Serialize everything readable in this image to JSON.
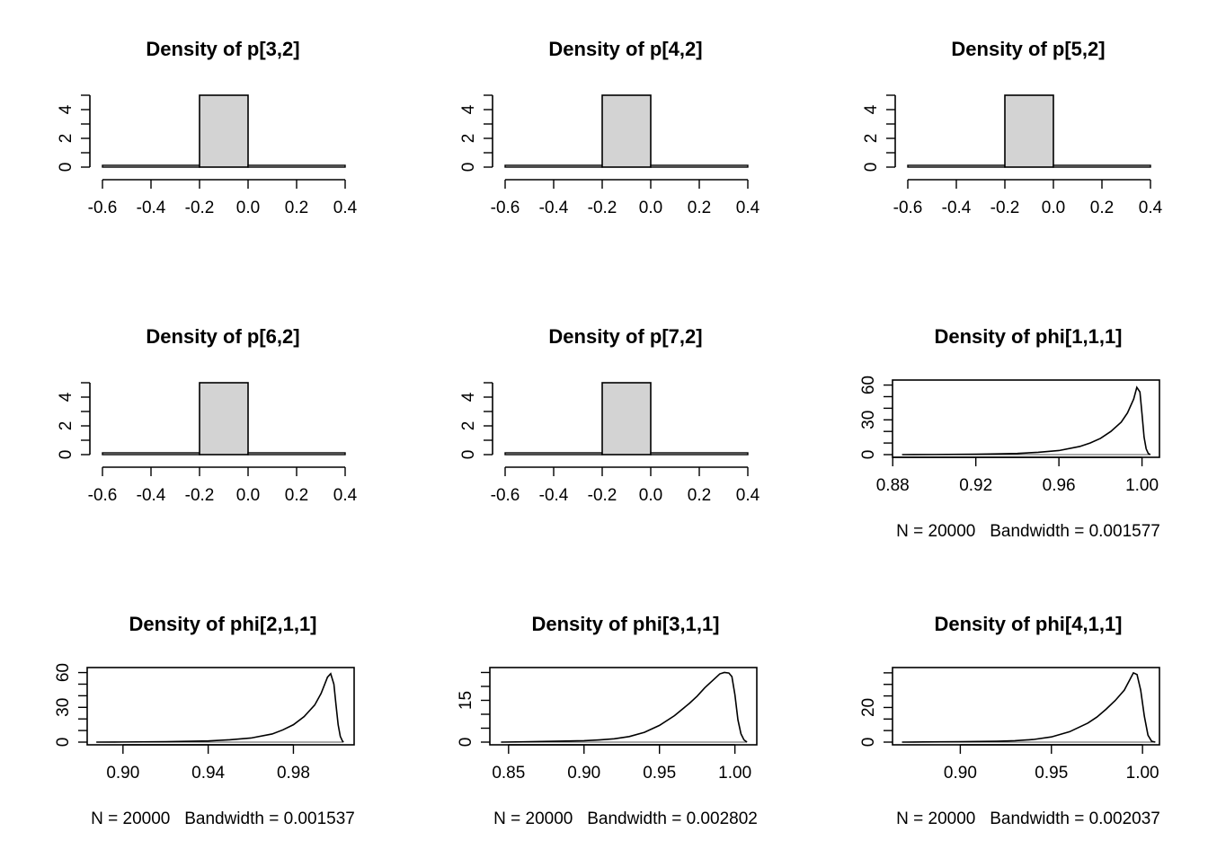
{
  "chart_data": [
    {
      "type": "histogram",
      "title": "Density of p[3,2]",
      "bins": [
        {
          "x0": -0.6,
          "x1": -0.2,
          "y": 0
        },
        {
          "x0": -0.2,
          "x1": 0.0,
          "y": 5
        },
        {
          "x0": 0.0,
          "x1": 0.4,
          "y": 0
        }
      ],
      "xticks": [
        -0.6,
        -0.4,
        -0.2,
        0.0,
        0.2,
        0.4
      ],
      "xticklabels": [
        "-0.6",
        "-0.4",
        "-0.2",
        "0.0",
        "0.2",
        "0.4"
      ],
      "yticks": [
        0,
        2,
        4
      ],
      "ylim": [
        0,
        5
      ],
      "frame": false,
      "subtitle": ""
    },
    {
      "type": "histogram",
      "title": "Density of p[4,2]",
      "bins": [
        {
          "x0": -0.6,
          "x1": -0.2,
          "y": 0
        },
        {
          "x0": -0.2,
          "x1": 0.0,
          "y": 5
        },
        {
          "x0": 0.0,
          "x1": 0.4,
          "y": 0
        }
      ],
      "xticks": [
        -0.6,
        -0.4,
        -0.2,
        0.0,
        0.2,
        0.4
      ],
      "xticklabels": [
        "-0.6",
        "-0.4",
        "-0.2",
        "0.0",
        "0.2",
        "0.4"
      ],
      "yticks": [
        0,
        2,
        4
      ],
      "ylim": [
        0,
        5
      ],
      "frame": false,
      "subtitle": ""
    },
    {
      "type": "histogram",
      "title": "Density of p[5,2]",
      "bins": [
        {
          "x0": -0.6,
          "x1": -0.2,
          "y": 0
        },
        {
          "x0": -0.2,
          "x1": 0.0,
          "y": 5
        },
        {
          "x0": 0.0,
          "x1": 0.4,
          "y": 0
        }
      ],
      "xticks": [
        -0.6,
        -0.4,
        -0.2,
        0.0,
        0.2,
        0.4
      ],
      "xticklabels": [
        "-0.6",
        "-0.4",
        "-0.2",
        "0.0",
        "0.2",
        "0.4"
      ],
      "yticks": [
        0,
        2,
        4
      ],
      "ylim": [
        0,
        5
      ],
      "frame": false,
      "subtitle": ""
    },
    {
      "type": "histogram",
      "title": "Density of p[6,2]",
      "bins": [
        {
          "x0": -0.6,
          "x1": -0.2,
          "y": 0
        },
        {
          "x0": -0.2,
          "x1": 0.0,
          "y": 5
        },
        {
          "x0": 0.0,
          "x1": 0.4,
          "y": 0
        }
      ],
      "xticks": [
        -0.6,
        -0.4,
        -0.2,
        0.0,
        0.2,
        0.4
      ],
      "xticklabels": [
        "-0.6",
        "-0.4",
        "-0.2",
        "0.0",
        "0.2",
        "0.4"
      ],
      "yticks": [
        0,
        2,
        4
      ],
      "ylim": [
        0,
        5
      ],
      "frame": false,
      "subtitle": ""
    },
    {
      "type": "histogram",
      "title": "Density of p[7,2]",
      "bins": [
        {
          "x0": -0.6,
          "x1": -0.2,
          "y": 0
        },
        {
          "x0": -0.2,
          "x1": 0.0,
          "y": 5
        },
        {
          "x0": 0.0,
          "x1": 0.4,
          "y": 0
        }
      ],
      "xticks": [
        -0.6,
        -0.4,
        -0.2,
        0.0,
        0.2,
        0.4
      ],
      "xticklabels": [
        "-0.6",
        "-0.4",
        "-0.2",
        "0.0",
        "0.2",
        "0.4"
      ],
      "yticks": [
        0,
        2,
        4
      ],
      "ylim": [
        0,
        5
      ],
      "frame": false,
      "subtitle": ""
    },
    {
      "type": "line",
      "title": "Density of phi[1,1,1]",
      "x": [
        0.8845,
        0.9,
        0.92,
        0.93,
        0.94,
        0.95,
        0.96,
        0.97,
        0.975,
        0.98,
        0.985,
        0.99,
        0.993,
        0.996,
        0.9975,
        0.999,
        1.0,
        1.001,
        1.002,
        1.003,
        1.004
      ],
      "y": [
        0,
        0.1,
        0.3,
        0.6,
        1.0,
        2.0,
        3.5,
        7.0,
        10.0,
        14.0,
        20.0,
        28.0,
        36.0,
        48.0,
        58.0,
        54.0,
        35.0,
        15.0,
        5.0,
        1.0,
        0
      ],
      "xticks": [
        0.88,
        0.92,
        0.96,
        1.0
      ],
      "xticklabels": [
        "0.88",
        "0.92",
        "0.96",
        "1.00"
      ],
      "xlim": [
        0.8799,
        1.0084
      ],
      "yticks": [
        0,
        30,
        60
      ],
      "ylim": [
        0,
        62
      ],
      "frame": true,
      "subtitle": "N = 20000   Bandwidth = 0.001577"
    },
    {
      "type": "line",
      "title": "Density of phi[2,1,1]",
      "x": [
        0.8875,
        0.9,
        0.92,
        0.94,
        0.95,
        0.96,
        0.97,
        0.975,
        0.98,
        0.985,
        0.99,
        0.993,
        0.996,
        0.9975,
        0.999,
        1.0,
        1.001,
        1.002,
        1.003,
        1.0035
      ],
      "y": [
        0,
        0.1,
        0.3,
        1.0,
        2.0,
        3.5,
        7.0,
        10.5,
        15.0,
        22.0,
        32.0,
        42.0,
        56.0,
        59.0,
        50.0,
        32.0,
        15.0,
        5.0,
        1.0,
        0
      ],
      "xticks": [
        0.9,
        0.94,
        0.98
      ],
      "xticklabels": [
        "0.90",
        "0.94",
        "0.98"
      ],
      "xlim": [
        0.8832,
        1.0085
      ],
      "yticks": [
        0,
        30,
        60
      ],
      "ylim": [
        0,
        62
      ],
      "frame": true,
      "subtitle": "N = 20000   Bandwidth = 0.001537"
    },
    {
      "type": "line",
      "title": "Density of phi[3,1,1]",
      "x": [
        0.845,
        0.86,
        0.88,
        0.9,
        0.91,
        0.92,
        0.93,
        0.94,
        0.95,
        0.96,
        0.97,
        0.975,
        0.98,
        0.985,
        0.99,
        0.993,
        0.996,
        0.998,
        1.0,
        1.002,
        1.004,
        1.006,
        1.008
      ],
      "y": [
        0,
        0.1,
        0.3,
        0.5,
        0.8,
        1.2,
        2.0,
        3.5,
        6.0,
        9.5,
        14.0,
        16.5,
        19.5,
        22.0,
        24.5,
        25.0,
        24.8,
        23.5,
        17.0,
        8.0,
        3.0,
        0.8,
        0
      ],
      "xticks": [
        0.85,
        0.9,
        0.95,
        1.0
      ],
      "xticklabels": [
        "0.85",
        "0.90",
        "0.95",
        "1.00"
      ],
      "xlim": [
        0.8376,
        1.0145
      ],
      "yticks": [
        0,
        15
      ],
      "ylim": [
        0,
        25.8
      ],
      "frame": true,
      "subtitle": "N = 20000   Bandwidth = 0.002802"
    },
    {
      "type": "line",
      "title": "Density of phi[4,1,1]",
      "x": [
        0.868,
        0.88,
        0.9,
        0.92,
        0.93,
        0.94,
        0.95,
        0.96,
        0.97,
        0.975,
        0.98,
        0.985,
        0.99,
        0.993,
        0.995,
        0.997,
        0.999,
        1.001,
        1.003,
        1.005,
        1.007
      ],
      "y": [
        0,
        0.1,
        0.2,
        0.5,
        0.8,
        1.5,
        3.0,
        6.0,
        11.0,
        14.5,
        19.0,
        24.0,
        30.0,
        36.0,
        40.0,
        39.0,
        30.0,
        15.0,
        4.0,
        0.5,
        0
      ],
      "xticks": [
        0.9,
        0.95,
        1.0
      ],
      "xticklabels": [
        "0.90",
        "0.95",
        "1.00"
      ],
      "xlim": [
        0.8628,
        1.0093
      ],
      "yticks": [
        0,
        20
      ],
      "ylim": [
        0,
        41.5
      ],
      "frame": true,
      "subtitle": "N = 20000   Bandwidth = 0.002037"
    }
  ]
}
